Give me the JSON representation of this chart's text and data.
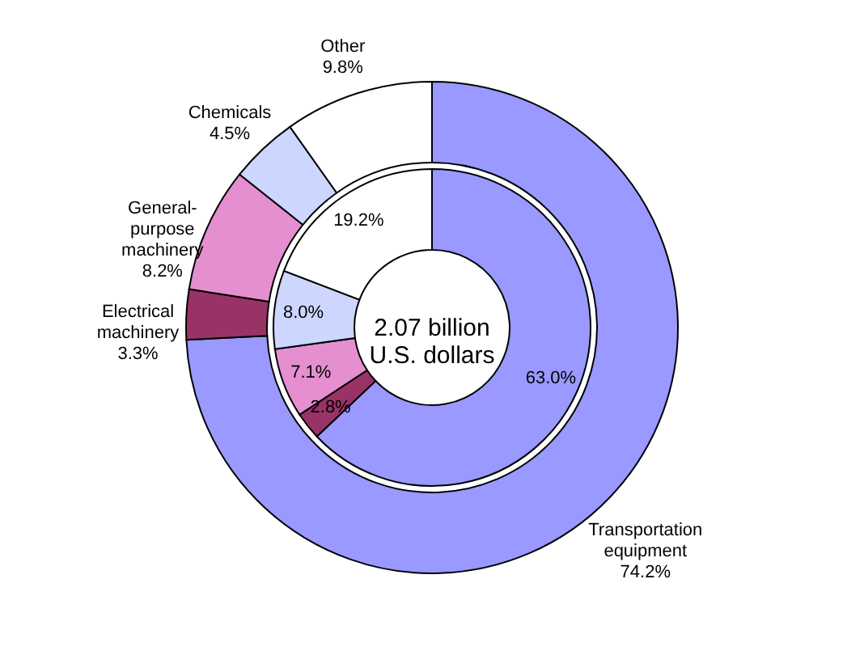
{
  "chart_data": {
    "type": "donut",
    "categories": [
      "Transportation equipment",
      "Electrical machinery",
      "General-purpose machinery",
      "Chemicals",
      "Other"
    ],
    "colors": [
      "#9999ff",
      "#993366",
      "#e58fd0",
      "#ccd6ff",
      "#ffffff"
    ],
    "series": [
      {
        "values": [
          74.2,
          3.3,
          8.2,
          4.5,
          9.8
        ],
        "value_labels": [
          "74.2%",
          "3.3%",
          "8.2%",
          "4.5%",
          "9.8%"
        ]
      },
      {
        "values": [
          63.0,
          2.8,
          7.1,
          8.0,
          19.2
        ],
        "value_labels": [
          "63.0%",
          "2.8%",
          "7.1%",
          "8.0%",
          "19.2%"
        ]
      }
    ],
    "annotations": [
      "2.07 billion U.S. dollars"
    ],
    "legend": false
  }
}
